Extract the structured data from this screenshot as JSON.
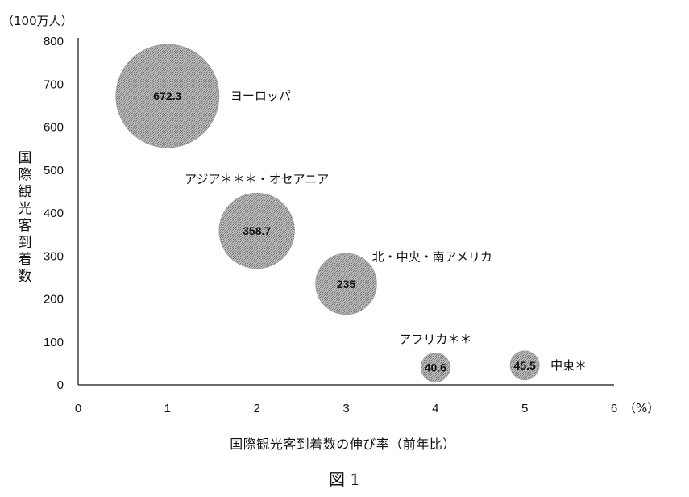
{
  "chart_data": {
    "type": "scatter",
    "subtype": "bubble",
    "y_unit": "（100万人）",
    "x_unit": "（%）",
    "xlabel": "国際観光客到着数の伸び率（前年比）",
    "ylabel": "国際観光客到着数",
    "caption": "図 1",
    "xlim": [
      0,
      6
    ],
    "ylim": [
      0,
      800
    ],
    "x_ticks": [
      0,
      1,
      2,
      3,
      4,
      5,
      6
    ],
    "y_ticks": [
      0,
      100,
      200,
      300,
      400,
      500,
      600,
      700,
      800
    ],
    "grid": false,
    "bubble_color": "#a3a3a3",
    "points": [
      {
        "name": "ヨーロッパ",
        "x": 1,
        "y": 672.3,
        "value_label": "672.3",
        "label_position": "right"
      },
      {
        "name": "アジア＊＊＊・オセアニア",
        "x": 2,
        "y": 358.7,
        "value_label": "358.7",
        "label_position": "top"
      },
      {
        "name": "北・中央・南アメリカ",
        "x": 3,
        "y": 235,
        "value_label": "235",
        "label_position": "top-right"
      },
      {
        "name": "アフリカ＊＊",
        "x": 4,
        "y": 40.6,
        "value_label": "40.6",
        "label_position": "top"
      },
      {
        "name": "中東＊",
        "x": 5,
        "y": 45.5,
        "value_label": "45.5",
        "label_position": "right"
      }
    ]
  }
}
